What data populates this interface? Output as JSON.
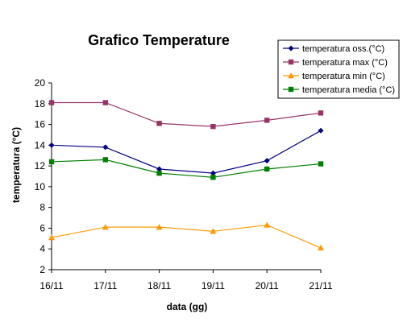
{
  "chart_data": {
    "type": "line",
    "title": "Grafico Temperature",
    "xlabel": "data (gg)",
    "ylabel": "temperatura  (°C)",
    "categories": [
      "16/11",
      "17/11",
      "18/11",
      "19/11",
      "20/11",
      "21/11"
    ],
    "ylim": [
      2,
      20
    ],
    "yticks": [
      "2",
      "4",
      "6",
      "8",
      "10",
      "12",
      "14",
      "16",
      "18",
      "20"
    ],
    "grid": false,
    "legend_position": "top-right",
    "series": [
      {
        "name": "temperatura oss.(°C)",
        "color": "#000080",
        "marker": "diamond",
        "values": [
          14.0,
          13.8,
          11.7,
          11.3,
          12.5,
          15.4
        ]
      },
      {
        "name": "temperatura max (°C)",
        "color": "#993366",
        "marker": "square",
        "values": [
          18.1,
          18.1,
          16.1,
          15.8,
          16.4,
          17.1
        ]
      },
      {
        "name": "temperatura min (°C)",
        "color": "#FF9900",
        "marker": "triangle",
        "values": [
          5.1,
          6.1,
          6.1,
          5.7,
          6.3,
          4.1
        ]
      },
      {
        "name": "temperatura media (°C)",
        "color": "#008000",
        "marker": "square",
        "values": [
          12.4,
          12.6,
          11.3,
          10.9,
          11.7,
          12.2
        ]
      }
    ]
  }
}
